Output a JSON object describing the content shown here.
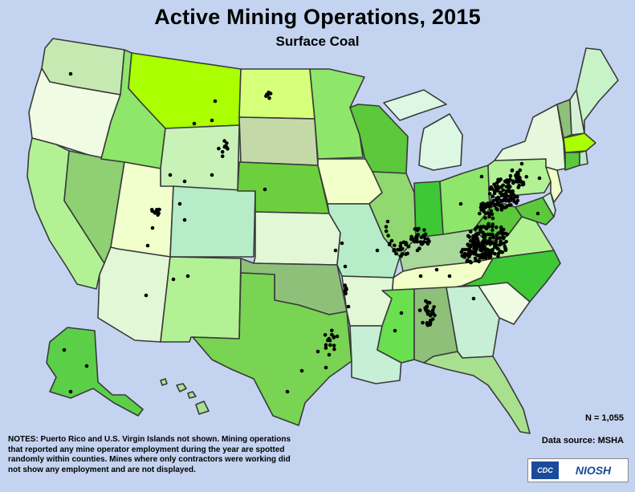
{
  "title": "Active Mining Operations, 2015",
  "subtitle": "Surface Coal",
  "count_label": "N = 1,055",
  "source_label": "Data source: MSHA",
  "notes": "NOTES: Puerto Rico and U.S. Virgin Islands not shown. Mining operations that reported any mine operator employment during the year are spotted randomly within counties. Mines where only contractors were working did not show any employment and are not displayed.",
  "logos": {
    "cdc": "CDC",
    "niosh": "NIOSH"
  },
  "colors": {
    "background": "#c4d4f0",
    "state_border": "#3a3a3a",
    "mine_dot": "#000000",
    "palette": [
      "#f0fbe4",
      "#e0f7d0",
      "#c8f2c8",
      "#b0f0a0",
      "#d6f27a",
      "#8ee66a",
      "#78d84a",
      "#60d040",
      "#4cc838",
      "#3ec836",
      "#8bc46e",
      "#7fb07a",
      "#aaff00",
      "#a8d8a8",
      "#cfe8cf"
    ]
  }
}
